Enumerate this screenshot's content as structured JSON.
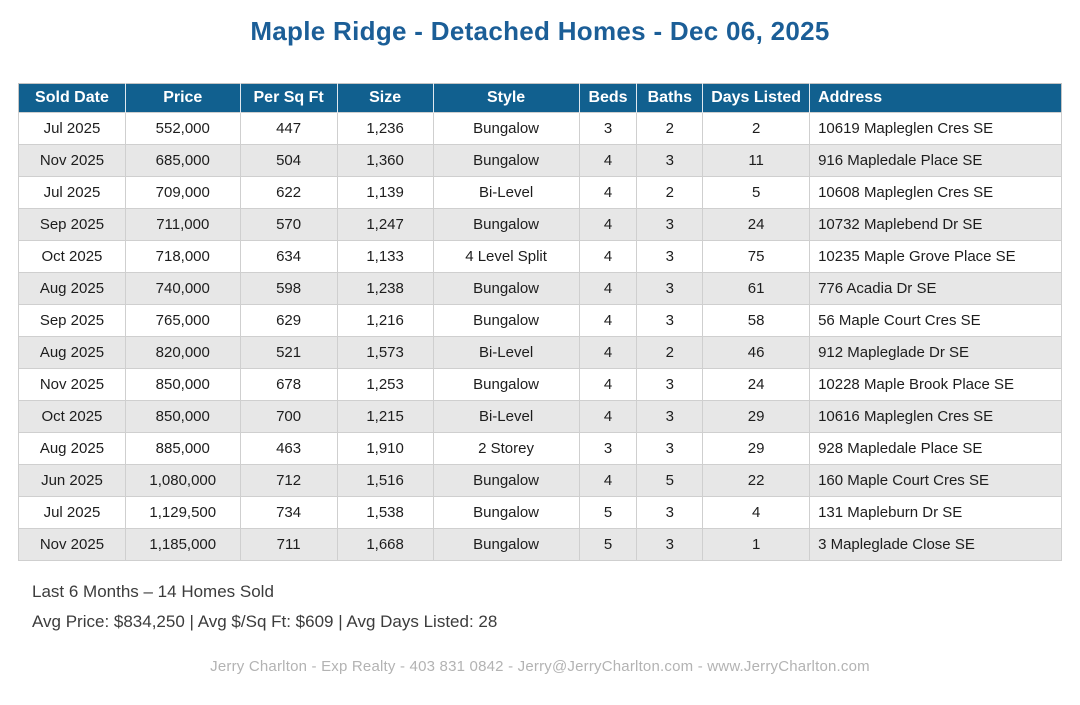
{
  "title": "Maple Ridge - Detached Homes - Dec 06, 2025",
  "table": {
    "headers": [
      "Sold Date",
      "Price",
      "Per Sq Ft",
      "Size",
      "Style",
      "Beds",
      "Baths",
      "Days Listed",
      "Address"
    ],
    "rows": [
      [
        "Jul 2025",
        "552,000",
        "447",
        "1,236",
        "Bungalow",
        "3",
        "2",
        "2",
        "10619 Mapleglen Cres SE"
      ],
      [
        "Nov 2025",
        "685,000",
        "504",
        "1,360",
        "Bungalow",
        "4",
        "3",
        "11",
        "916 Mapledale Place SE"
      ],
      [
        "Jul 2025",
        "709,000",
        "622",
        "1,139",
        "Bi-Level",
        "4",
        "2",
        "5",
        "10608 Mapleglen Cres SE"
      ],
      [
        "Sep 2025",
        "711,000",
        "570",
        "1,247",
        "Bungalow",
        "4",
        "3",
        "24",
        "10732 Maplebend Dr SE"
      ],
      [
        "Oct 2025",
        "718,000",
        "634",
        "1,133",
        "4 Level Split",
        "4",
        "3",
        "75",
        "10235 Maple Grove Place SE"
      ],
      [
        "Aug 2025",
        "740,000",
        "598",
        "1,238",
        "Bungalow",
        "4",
        "3",
        "61",
        "776 Acadia Dr SE"
      ],
      [
        "Sep 2025",
        "765,000",
        "629",
        "1,216",
        "Bungalow",
        "4",
        "3",
        "58",
        "56 Maple Court Cres SE"
      ],
      [
        "Aug 2025",
        "820,000",
        "521",
        "1,573",
        "Bi-Level",
        "4",
        "2",
        "46",
        "912 Mapleglade Dr SE"
      ],
      [
        "Nov 2025",
        "850,000",
        "678",
        "1,253",
        "Bungalow",
        "4",
        "3",
        "24",
        "10228 Maple Brook Place SE"
      ],
      [
        "Oct 2025",
        "850,000",
        "700",
        "1,215",
        "Bi-Level",
        "4",
        "3",
        "29",
        "10616 Mapleglen Cres SE"
      ],
      [
        "Aug 2025",
        "885,000",
        "463",
        "1,910",
        "2 Storey",
        "3",
        "3",
        "29",
        "928 Mapledale Place SE"
      ],
      [
        "Jun 2025",
        "1,080,000",
        "712",
        "1,516",
        "Bungalow",
        "4",
        "5",
        "22",
        "160 Maple Court Cres SE"
      ],
      [
        "Jul 2025",
        "1,129,500",
        "734",
        "1,538",
        "Bungalow",
        "5",
        "3",
        "4",
        "131 Mapleburn Dr SE"
      ],
      [
        "Nov 2025",
        "1,185,000",
        "711",
        "1,668",
        "Bungalow",
        "5",
        "3",
        "1",
        "3 Mapleglade Close SE"
      ]
    ]
  },
  "summary": {
    "line1": "Last 6 Months – 14 Homes Sold",
    "line2": "Avg Price: $834,250 | Avg $/Sq Ft: $609 | Avg Days Listed: 28"
  },
  "footer": "Jerry Charlton - Exp Realty - 403 831 0842 - Jerry@JerryCharlton.com - www.JerryCharlton.com",
  "colors": {
    "title_blue": "#1b5e97",
    "header_bg": "#11608f",
    "stripe_gray": "#e7e7e7",
    "border_gray": "#cfcfcf",
    "footer_gray": "#b3b3b3"
  }
}
